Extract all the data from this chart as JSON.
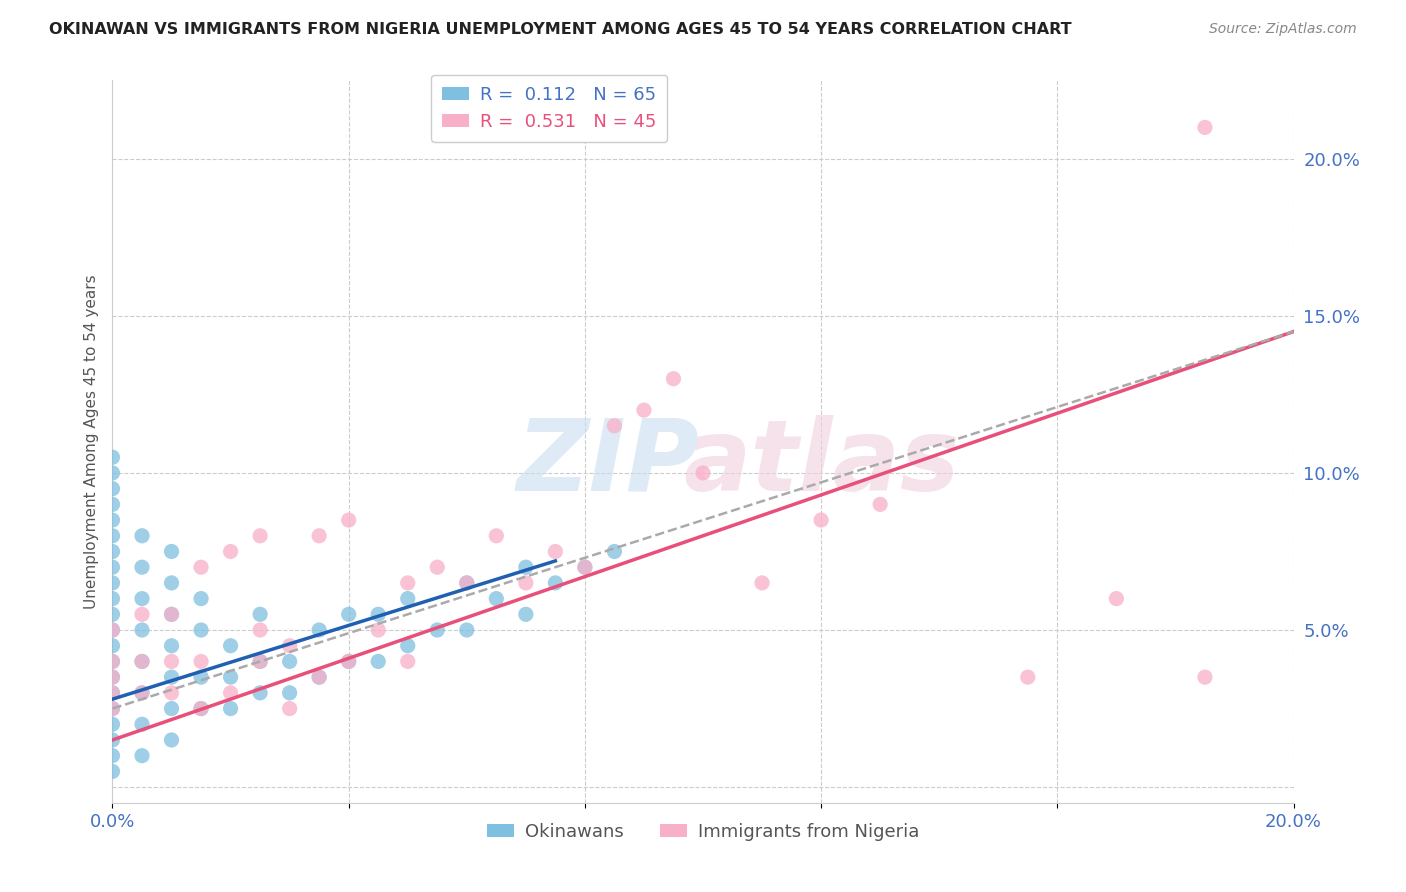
{
  "title": "OKINAWAN VS IMMIGRANTS FROM NIGERIA UNEMPLOYMENT AMONG AGES 45 TO 54 YEARS CORRELATION CHART",
  "source": "Source: ZipAtlas.com",
  "ylabel": "Unemployment Among Ages 45 to 54 years",
  "xmin": 0.0,
  "xmax": 0.2,
  "ymin": -0.005,
  "ymax": 0.225,
  "x_ticks": [
    0.0,
    0.04,
    0.08,
    0.12,
    0.16,
    0.2
  ],
  "x_tick_labels": [
    "0.0%",
    "",
    "",
    "",
    "",
    "20.0%"
  ],
  "y_ticks_right": [
    0.0,
    0.05,
    0.1,
    0.15,
    0.2
  ],
  "y_tick_labels_right": [
    "",
    "5.0%",
    "10.0%",
    "15.0%",
    "20.0%"
  ],
  "okinawan_color": "#7fbfdf",
  "nigeria_color": "#f8afc8",
  "okinawan_line_color": "#2060b0",
  "nigeria_line_color": "#e8507a",
  "dashed_line_color": "#aaaaaa",
  "okinawan_R": "0.112",
  "okinawan_N": "65",
  "nigeria_R": "0.531",
  "nigeria_N": "45",
  "legend_box_color": "#cccccc",
  "okinawan_text_color": "#4472c4",
  "nigeria_text_color": "#e8507a",
  "grid_color": "#cccccc",
  "title_color": "#222222",
  "source_color": "#888888",
  "ylabel_color": "#555555",
  "okinawan_line_x_end": 0.075,
  "okinawan_line_y_start": 0.028,
  "okinawan_line_y_end": 0.072,
  "nigeria_line_y_start": 0.015,
  "nigeria_line_y_end": 0.145,
  "dashed_line_y_start": 0.025,
  "dashed_line_y_end": 0.145,
  "okinawan_scatter_x": [
    0.0,
    0.0,
    0.0,
    0.0,
    0.0,
    0.0,
    0.0,
    0.0,
    0.0,
    0.0,
    0.0,
    0.0,
    0.0,
    0.0,
    0.0,
    0.0,
    0.0,
    0.0,
    0.0,
    0.0,
    0.0,
    0.005,
    0.005,
    0.005,
    0.005,
    0.005,
    0.005,
    0.005,
    0.005,
    0.01,
    0.01,
    0.01,
    0.01,
    0.01,
    0.01,
    0.01,
    0.015,
    0.015,
    0.015,
    0.015,
    0.02,
    0.02,
    0.02,
    0.025,
    0.025,
    0.025,
    0.03,
    0.03,
    0.035,
    0.035,
    0.04,
    0.04,
    0.045,
    0.045,
    0.05,
    0.05,
    0.055,
    0.06,
    0.06,
    0.065,
    0.07,
    0.07,
    0.075,
    0.08,
    0.085
  ],
  "okinawan_scatter_y": [
    0.005,
    0.01,
    0.015,
    0.02,
    0.025,
    0.03,
    0.035,
    0.04,
    0.045,
    0.05,
    0.055,
    0.06,
    0.065,
    0.07,
    0.075,
    0.08,
    0.085,
    0.09,
    0.095,
    0.1,
    0.105,
    0.01,
    0.02,
    0.03,
    0.04,
    0.05,
    0.06,
    0.07,
    0.08,
    0.015,
    0.025,
    0.035,
    0.045,
    0.055,
    0.065,
    0.075,
    0.025,
    0.035,
    0.05,
    0.06,
    0.025,
    0.035,
    0.045,
    0.03,
    0.04,
    0.055,
    0.03,
    0.04,
    0.035,
    0.05,
    0.04,
    0.055,
    0.04,
    0.055,
    0.045,
    0.06,
    0.05,
    0.05,
    0.065,
    0.06,
    0.055,
    0.07,
    0.065,
    0.07,
    0.075
  ],
  "nigeria_scatter_x": [
    0.0,
    0.0,
    0.0,
    0.0,
    0.0,
    0.005,
    0.005,
    0.005,
    0.01,
    0.01,
    0.01,
    0.015,
    0.015,
    0.015,
    0.02,
    0.02,
    0.025,
    0.025,
    0.025,
    0.03,
    0.03,
    0.035,
    0.035,
    0.04,
    0.04,
    0.045,
    0.05,
    0.05,
    0.055,
    0.06,
    0.065,
    0.07,
    0.075,
    0.08,
    0.085,
    0.09,
    0.095,
    0.1,
    0.11,
    0.12,
    0.13,
    0.155,
    0.17,
    0.185,
    0.185
  ],
  "nigeria_scatter_y": [
    0.025,
    0.03,
    0.035,
    0.04,
    0.05,
    0.03,
    0.04,
    0.055,
    0.03,
    0.04,
    0.055,
    0.025,
    0.04,
    0.07,
    0.03,
    0.075,
    0.04,
    0.05,
    0.08,
    0.025,
    0.045,
    0.035,
    0.08,
    0.04,
    0.085,
    0.05,
    0.04,
    0.065,
    0.07,
    0.065,
    0.08,
    0.065,
    0.075,
    0.07,
    0.115,
    0.12,
    0.13,
    0.1,
    0.065,
    0.085,
    0.09,
    0.035,
    0.06,
    0.035,
    0.21
  ]
}
